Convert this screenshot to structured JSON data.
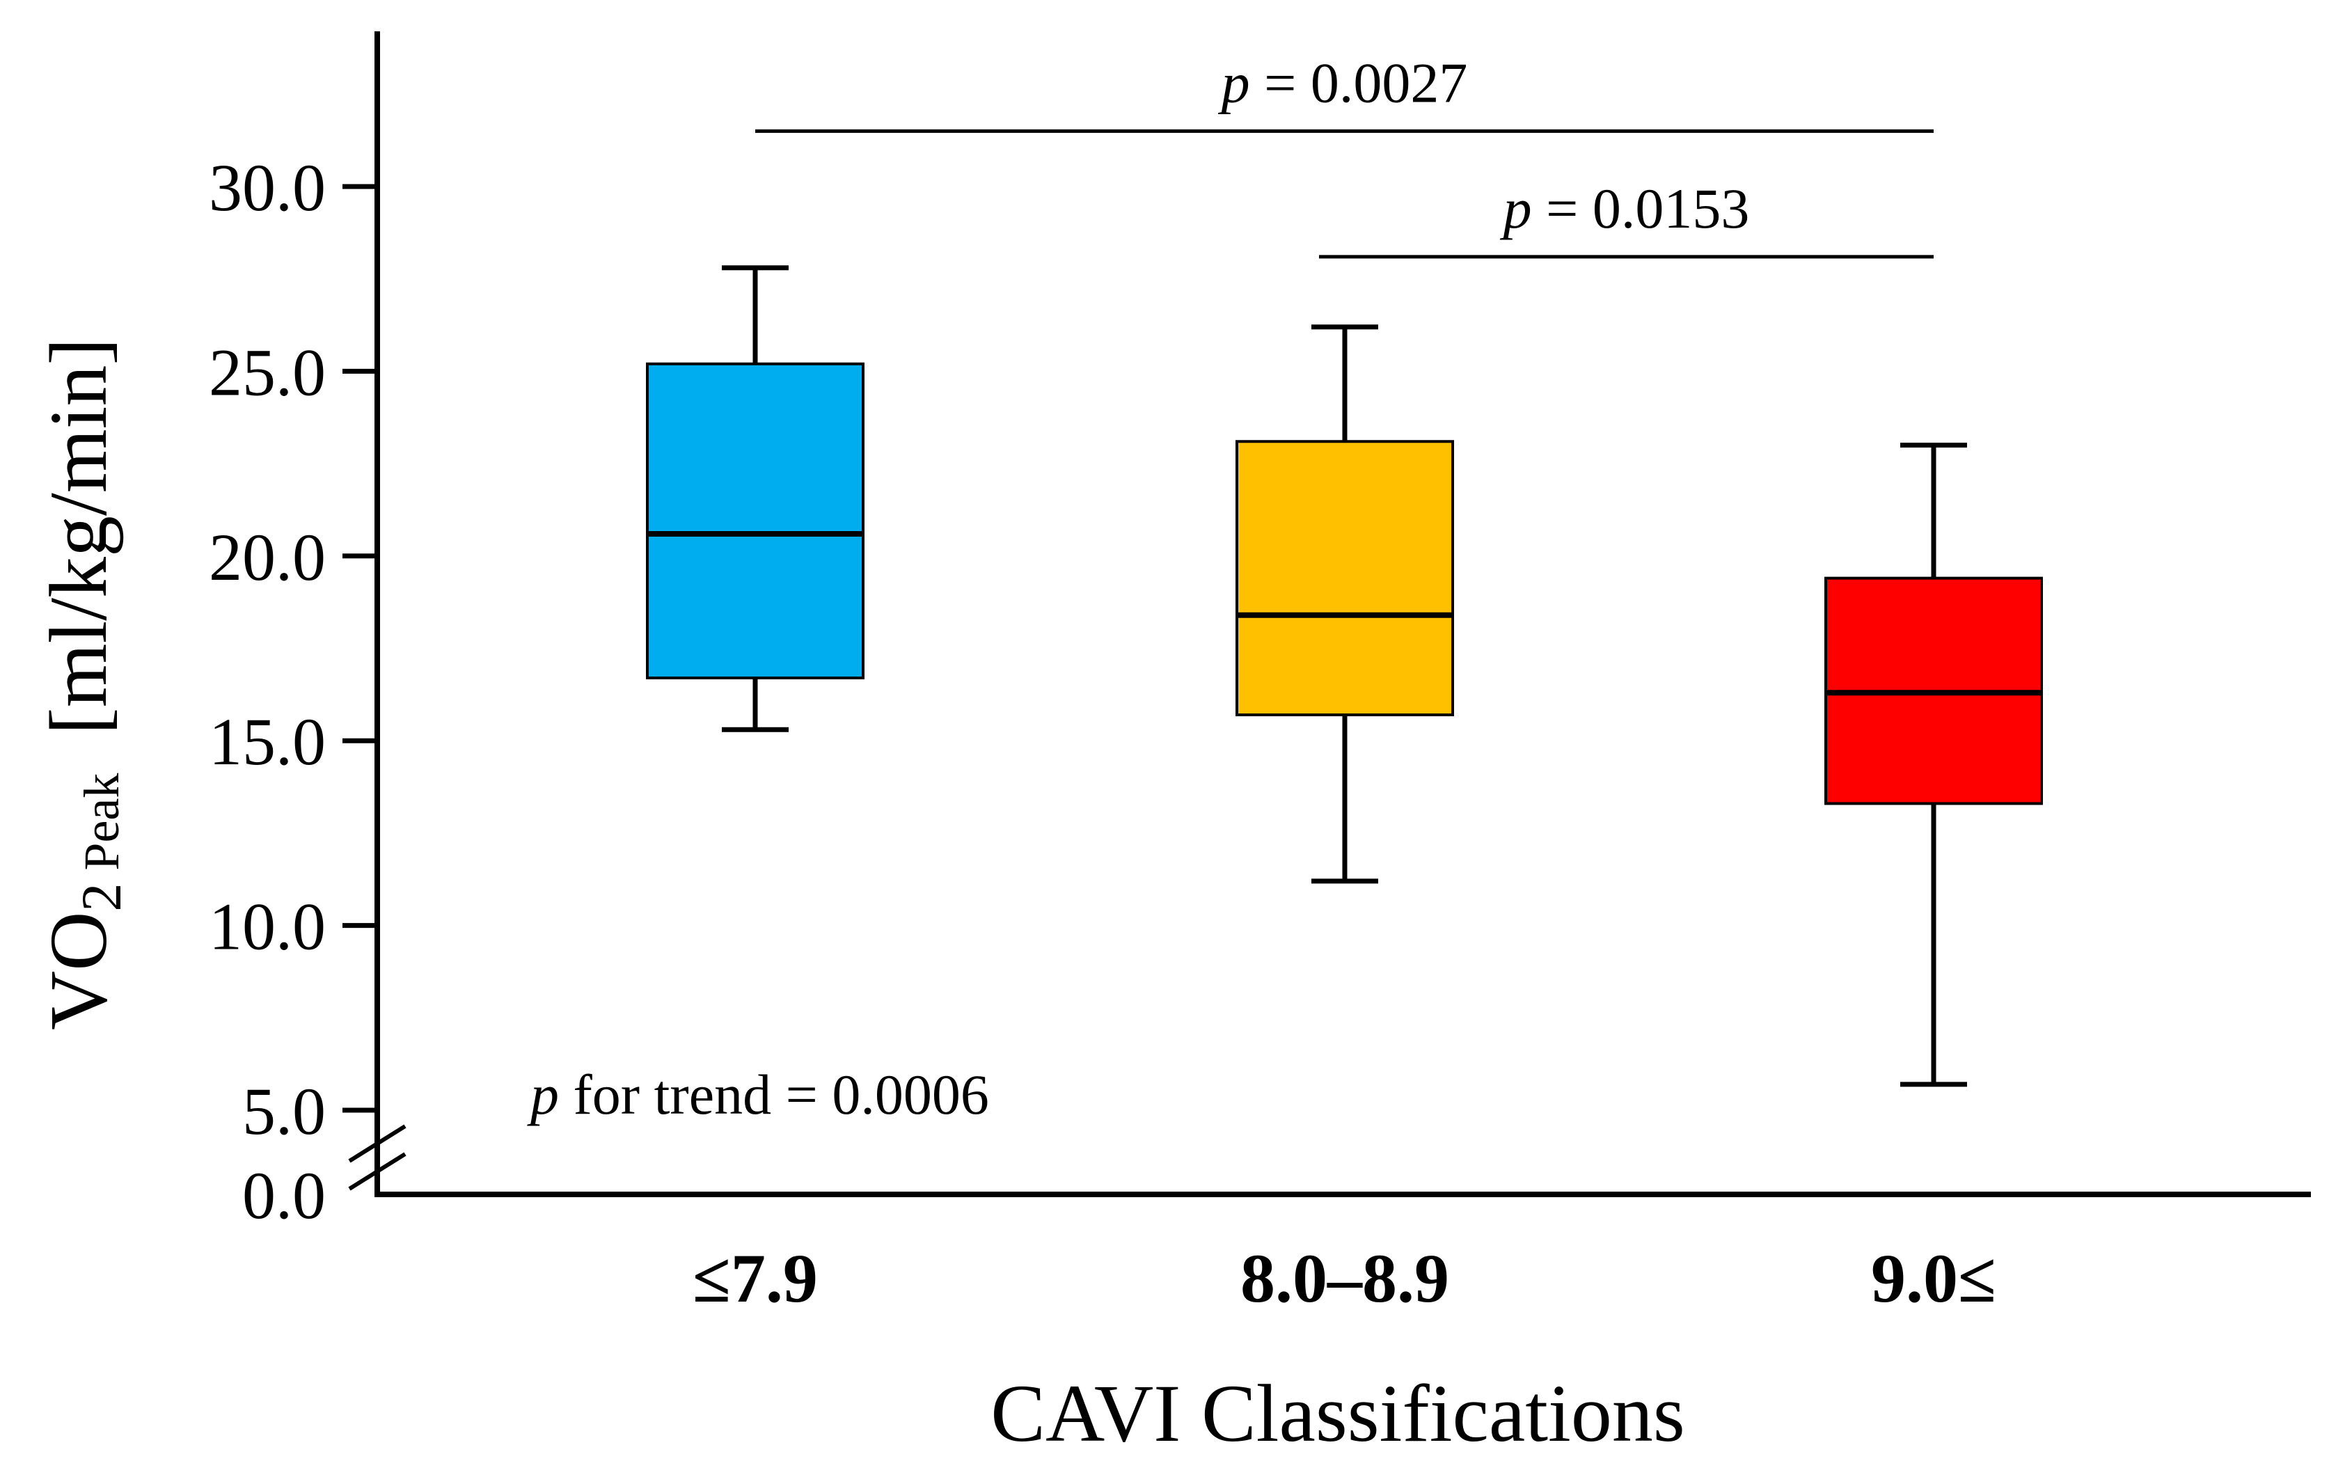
{
  "chart_data": {
    "type": "box",
    "xlabel": "CAVI Classifications",
    "ylabel": {
      "main": "VO",
      "sub2": "2",
      "subPeak": "Peak",
      "units": "[ml/kg/min]"
    },
    "yticks": [
      "0.0",
      "5.0",
      "10.0",
      "15.0",
      "20.0",
      "25.0",
      "30.0"
    ],
    "ytick_values": [
      0,
      5,
      10,
      15,
      20,
      25,
      30
    ],
    "ylim": [
      0,
      33.8
    ],
    "axis_break": true,
    "categories": [
      "≤7.9",
      "8.0–8.9",
      "9.0≤"
    ],
    "series": [
      {
        "category": "≤7.9",
        "whisker_low": 15.3,
        "q1": 16.7,
        "median": 20.6,
        "q3": 25.2,
        "whisker_high": 27.8,
        "color": "#00AEEF"
      },
      {
        "category": "8.0–8.9",
        "whisker_low": 11.2,
        "q1": 15.7,
        "median": 18.4,
        "q3": 23.1,
        "whisker_high": 26.2,
        "color": "#FFC000"
      },
      {
        "category": "9.0≤",
        "whisker_low": 5.7,
        "q1": 13.3,
        "median": 16.3,
        "q3": 19.4,
        "whisker_high": 23.0,
        "color": "#FF0000"
      }
    ],
    "comparisons": [
      {
        "from": "≤7.9",
        "to": "9.0≤",
        "p_symbol": "p",
        "p_text": " = 0.0027",
        "y": 31.5
      },
      {
        "from": "8.0–8.9",
        "to": "9.0≤",
        "p_symbol": "p",
        "p_text": " = 0.0153",
        "y": 28.1
      }
    ],
    "trend_annotation": {
      "p_symbol": "p",
      "text": " for trend = 0.0006"
    }
  }
}
